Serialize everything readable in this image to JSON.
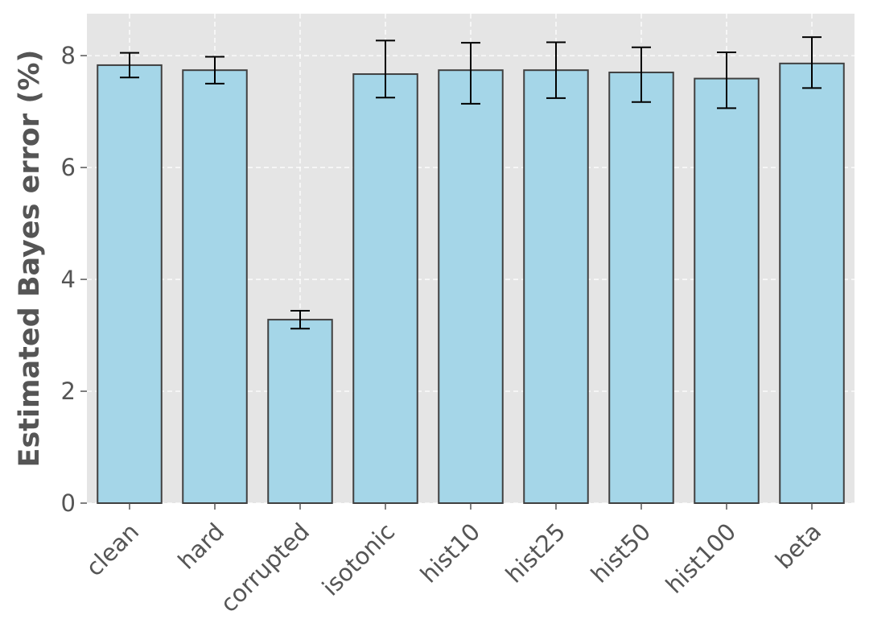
{
  "chart_data": {
    "type": "bar",
    "title": "",
    "xlabel": "",
    "ylabel": "Estimated Bayes error (%)",
    "categories": [
      "clean",
      "hard",
      "corrupted",
      "isotonic",
      "hist10",
      "hist25",
      "hist50",
      "hist100",
      "beta"
    ],
    "values": [
      7.83,
      7.74,
      3.28,
      7.67,
      7.74,
      7.74,
      7.7,
      7.59,
      7.86
    ],
    "error_low": [
      0.22,
      0.24,
      0.16,
      0.42,
      0.6,
      0.5,
      0.53,
      0.53,
      0.44
    ],
    "error_high": [
      0.22,
      0.24,
      0.16,
      0.6,
      0.49,
      0.5,
      0.45,
      0.47,
      0.47
    ],
    "yticks": [
      0,
      2,
      4,
      6,
      8
    ],
    "ylim": [
      0,
      8.75
    ],
    "grid": true,
    "colors": {
      "plot_background": "#e5e5e5",
      "bar_fill": "#a5d6e8",
      "bar_edge": "#404040",
      "error_bar": "#000000",
      "grid": "#ffffff",
      "text": "#555555"
    }
  }
}
